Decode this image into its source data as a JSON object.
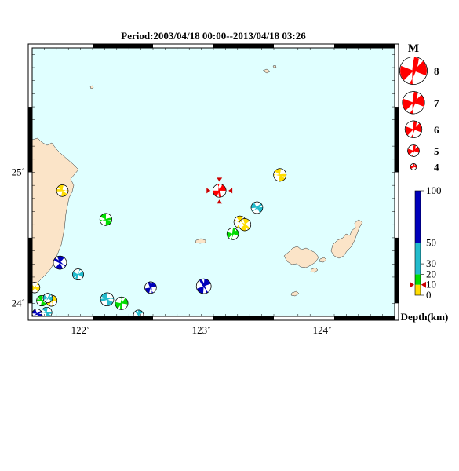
{
  "map": {
    "title": "Period:2003/04/18 00:00--2013/04/18 03:26",
    "lon_range": [
      121.6,
      124.6
    ],
    "lat_range": [
      23.9,
      25.95
    ],
    "lon_ticks": [
      {
        "value": 122,
        "label": "122˚"
      },
      {
        "value": 123,
        "label": "123˚"
      },
      {
        "value": 124,
        "label": "124˚"
      }
    ],
    "lat_ticks": [
      {
        "value": 25,
        "label": "25˚"
      },
      {
        "value": 24,
        "label": "24˚"
      }
    ],
    "colors": {
      "sea": "#e0ffff",
      "land": "#fbe4c8",
      "compression": "#ff0000",
      "depth_shallow": "#ffdd00",
      "depth_mid": "#00dd00",
      "depth_intermediate": "#22bbcc",
      "depth_deep": "#0000bb"
    }
  },
  "magnitude_legend": {
    "label": "M",
    "items": [
      {
        "label": "8",
        "mag": 8
      },
      {
        "label": "7",
        "mag": 7
      },
      {
        "label": "6",
        "mag": 6
      },
      {
        "label": "5",
        "mag": 5
      },
      {
        "label": "4",
        "mag": 4
      }
    ]
  },
  "depth_colorbar": {
    "label": "Depth(km)",
    "ticks": [
      {
        "value": 100,
        "label": "100"
      },
      {
        "value": 50,
        "label": "50"
      },
      {
        "value": 30,
        "label": "30"
      },
      {
        "value": 20,
        "label": "20"
      },
      {
        "value": 10,
        "label": "10"
      },
      {
        "value": 0,
        "label": "0"
      }
    ],
    "segments": [
      {
        "from": 0,
        "to": 10,
        "color": "#ffdd00"
      },
      {
        "from": 10,
        "to": 20,
        "color": "#00dd00"
      },
      {
        "from": 20,
        "to": 50,
        "color": "#22bbcc"
      },
      {
        "from": 50,
        "to": 100,
        "color": "#0000bb"
      }
    ],
    "marker_depth": 10
  },
  "events": [
    {
      "lon": 123.15,
      "lat": 24.86,
      "mag": 5.3,
      "depth": 10,
      "color": "#ff0000",
      "rot": 100,
      "latest": true
    },
    {
      "lon": 123.65,
      "lat": 24.98,
      "mag": 5.2,
      "depth": 5,
      "color": "#ffdd00",
      "rot": 20
    },
    {
      "lon": 121.85,
      "lat": 24.86,
      "mag": 5.0,
      "depth": 5,
      "color": "#ffdd00",
      "rot": 200
    },
    {
      "lon": 122.21,
      "lat": 24.64,
      "mag": 5.1,
      "depth": 15,
      "color": "#00dd00",
      "rot": 10
    },
    {
      "lon": 123.46,
      "lat": 24.73,
      "mag": 5.0,
      "depth": 35,
      "color": "#22bbcc",
      "rot": 340
    },
    {
      "lon": 123.32,
      "lat": 24.62,
      "mag": 5.1,
      "depth": 5,
      "color": "#ffdd00",
      "rot": 40
    },
    {
      "lon": 123.36,
      "lat": 24.6,
      "mag": 5.1,
      "depth": 5,
      "color": "#ffdd00",
      "rot": 60
    },
    {
      "lon": 123.26,
      "lat": 24.53,
      "mag": 5.0,
      "depth": 15,
      "color": "#00dd00",
      "rot": 300
    },
    {
      "lon": 121.83,
      "lat": 24.31,
      "mag": 5.3,
      "depth": 60,
      "color": "#0000bb",
      "rot": 230
    },
    {
      "lon": 121.98,
      "lat": 24.22,
      "mag": 4.9,
      "depth": 35,
      "color": "#22bbcc",
      "rot": 130
    },
    {
      "lon": 122.58,
      "lat": 24.12,
      "mag": 5.0,
      "depth": 60,
      "color": "#0000bb",
      "rot": 270
    },
    {
      "lon": 123.02,
      "lat": 24.13,
      "mag": 5.6,
      "depth": 60,
      "color": "#0000bb",
      "rot": 260
    },
    {
      "lon": 122.22,
      "lat": 24.03,
      "mag": 5.3,
      "depth": 35,
      "color": "#22bbcc",
      "rot": 190
    },
    {
      "lon": 122.34,
      "lat": 24.0,
      "mag": 5.2,
      "depth": 15,
      "color": "#00dd00",
      "rot": 110
    },
    {
      "lon": 122.48,
      "lat": 23.91,
      "mag": 4.7,
      "depth": 35,
      "color": "#22bbcc",
      "rot": 250
    },
    {
      "lon": 121.62,
      "lat": 24.12,
      "mag": 4.8,
      "depth": 5,
      "color": "#ffdd00",
      "rot": 150
    },
    {
      "lon": 121.68,
      "lat": 24.02,
      "mag": 4.8,
      "depth": 15,
      "color": "#00dd00",
      "rot": 200
    },
    {
      "lon": 121.76,
      "lat": 24.02,
      "mag": 4.9,
      "depth": 5,
      "color": "#ffdd00",
      "rot": 280
    },
    {
      "lon": 121.73,
      "lat": 24.04,
      "mag": 4.6,
      "depth": 35,
      "color": "#22bbcc",
      "rot": 320
    },
    {
      "lon": 121.72,
      "lat": 23.93,
      "mag": 4.8,
      "depth": 35,
      "color": "#22bbcc",
      "rot": 20
    },
    {
      "lon": 121.64,
      "lat": 23.92,
      "mag": 4.6,
      "depth": 60,
      "color": "#0000bb",
      "rot": 350
    }
  ]
}
